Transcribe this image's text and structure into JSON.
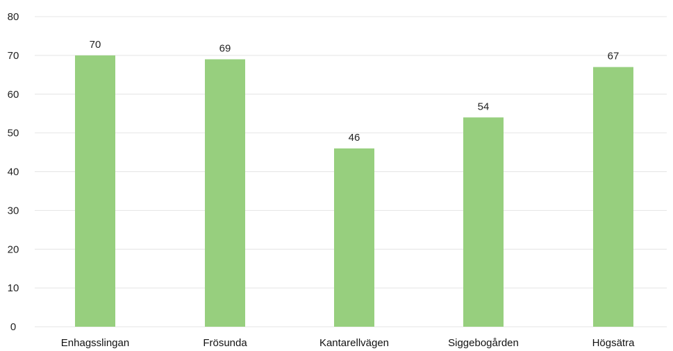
{
  "chart_data": {
    "type": "bar",
    "categories": [
      "Enhagsslingan",
      "Frösunda",
      "Kantarellvägen",
      "Siggebogården",
      "Högsätra"
    ],
    "values": [
      70,
      69,
      46,
      54,
      67
    ],
    "data_labels": [
      "70",
      "69",
      "46",
      "54",
      "67"
    ],
    "title": "",
    "xlabel": "",
    "ylabel": "",
    "ylim": [
      0,
      80
    ],
    "yticks": [
      0,
      10,
      20,
      30,
      40,
      50,
      60,
      70,
      80
    ],
    "grid": true,
    "legend": "none",
    "colors": {
      "bar": "#97cf7e",
      "grid": "#e4e4e4",
      "text": "#222222"
    }
  }
}
